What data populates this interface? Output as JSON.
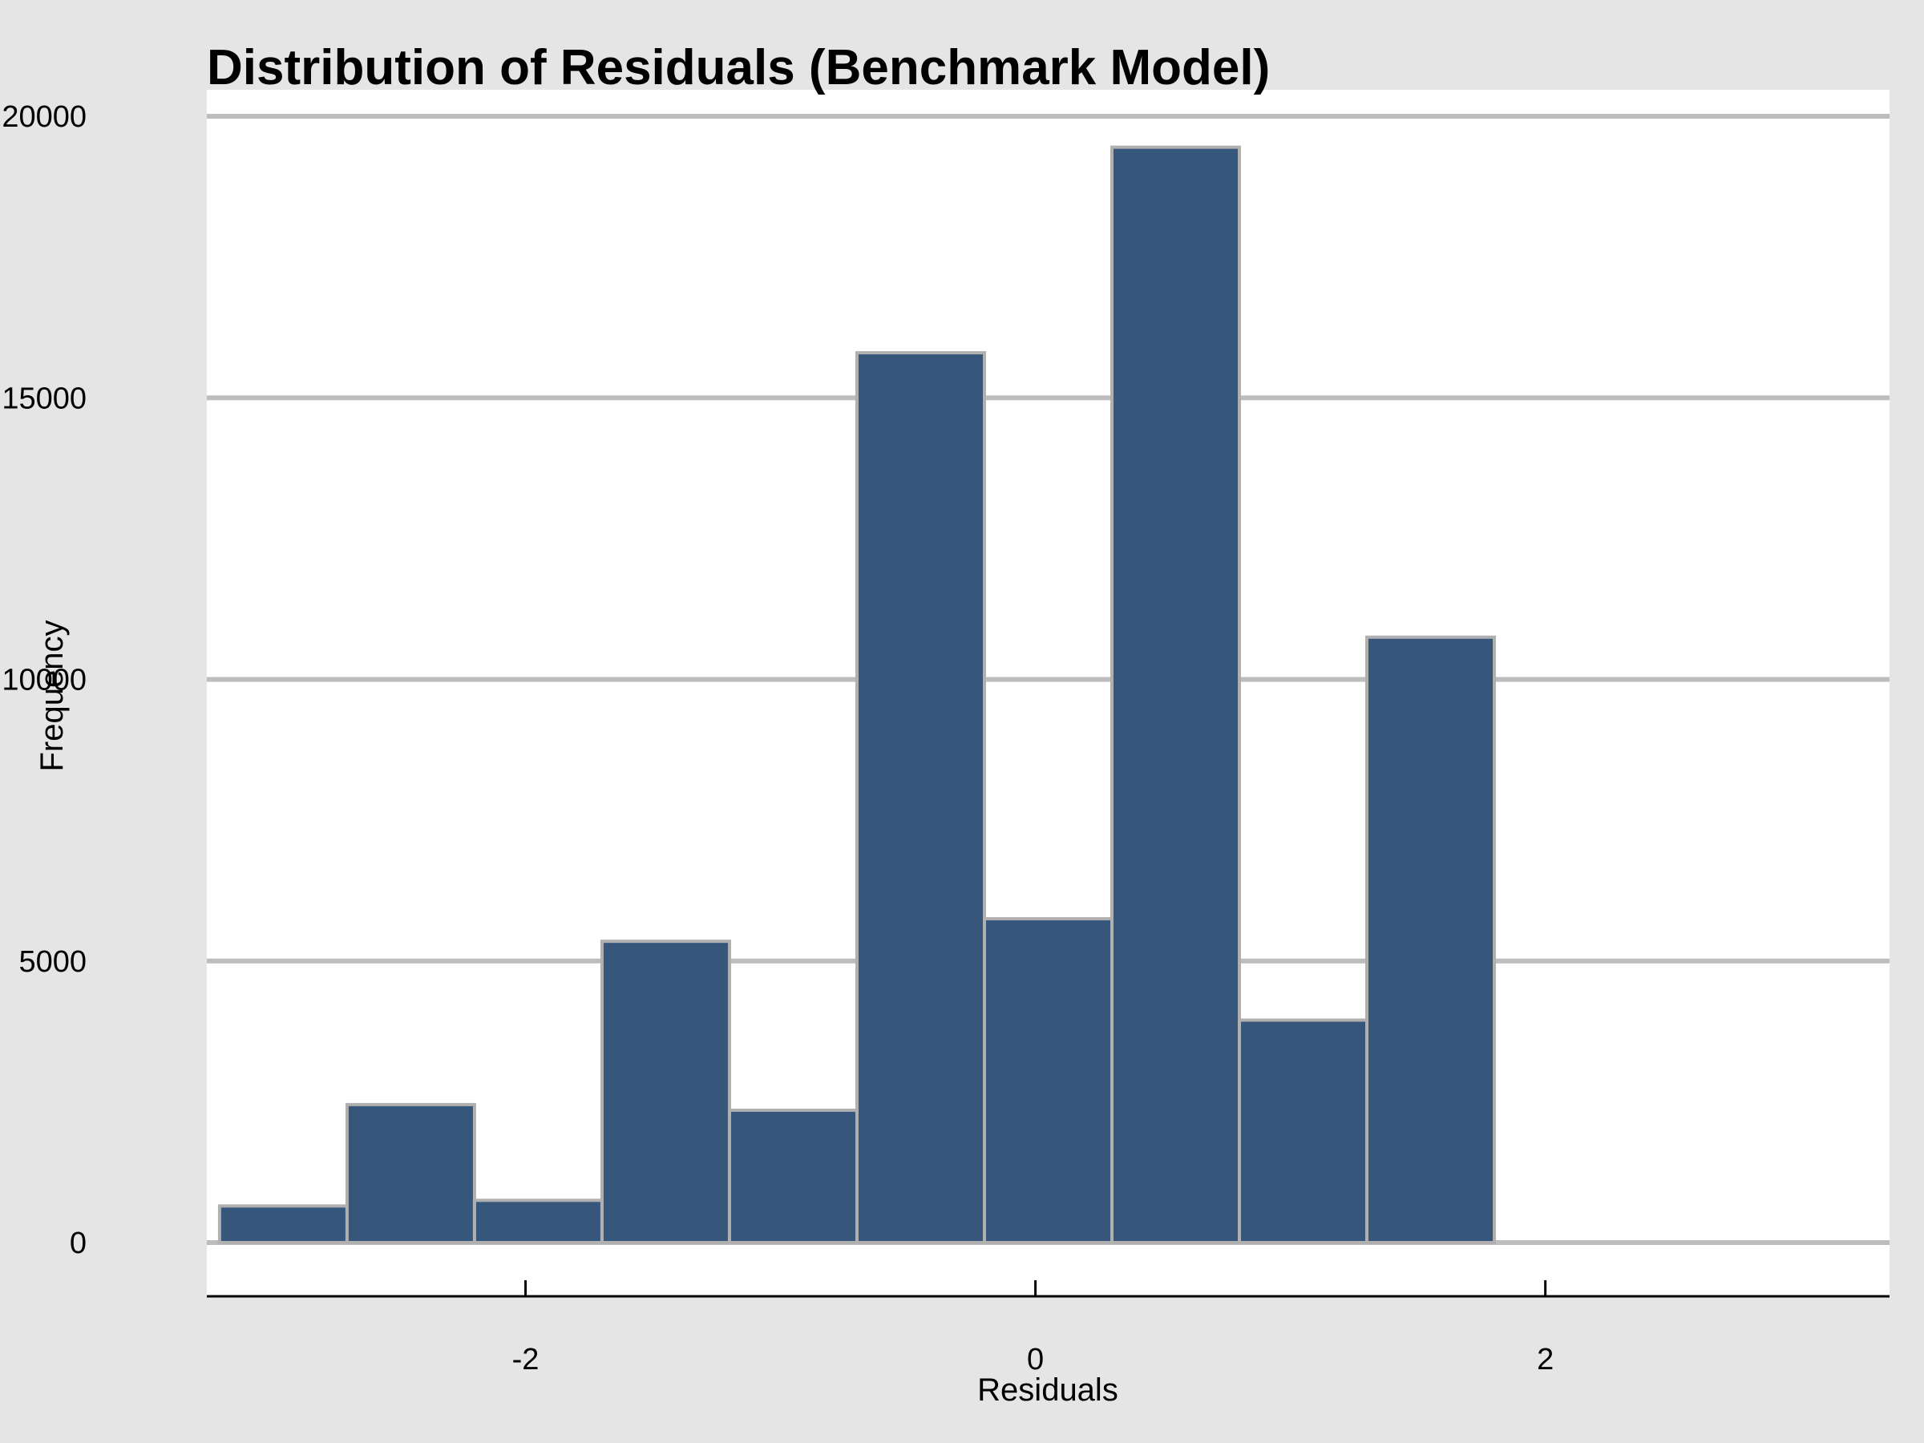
{
  "chart_data": {
    "type": "bar",
    "subtype": "histogram",
    "title": "Distribution of Residuals (Benchmark Model)",
    "xlabel": "Residuals",
    "ylabel": "Frequency",
    "xlim": [
      -3.25,
      3.35
    ],
    "ylim": [
      -950,
      20000
    ],
    "xticks": [
      -2,
      0,
      2
    ],
    "xtick_labels": [
      "-2",
      "0",
      "2"
    ],
    "yticks": [
      0,
      5000,
      10000,
      15000,
      20000
    ],
    "ytick_labels": [
      "0",
      "5000",
      "10000",
      "15000",
      "20000"
    ],
    "bins": [
      {
        "x0": -3.2,
        "x1": -2.7,
        "count": 650
      },
      {
        "x0": -2.7,
        "x1": -2.2,
        "count": 2450
      },
      {
        "x0": -2.2,
        "x1": -1.7,
        "count": 750
      },
      {
        "x0": -1.7,
        "x1": -1.2,
        "count": 5350
      },
      {
        "x0": -1.2,
        "x1": -0.7,
        "count": 2350
      },
      {
        "x0": -0.7,
        "x1": -0.2,
        "count": 15800
      },
      {
        "x0": -0.2,
        "x1": 0.3,
        "count": 5750
      },
      {
        "x0": 0.3,
        "x1": 0.8,
        "count": 19450
      },
      {
        "x0": 0.8,
        "x1": 1.3,
        "count": 3950
      },
      {
        "x0": 1.3,
        "x1": 1.8,
        "count": 10750
      }
    ],
    "grid": "horizontal",
    "legend": "none",
    "colors": {
      "bar_fill": "#36567c",
      "bar_edge": "#b0b0b0",
      "gridline": "#bdbdbd",
      "plot_background": "#ffffff",
      "figure_background": "#e5e5e5",
      "axis_line": "#000000"
    }
  }
}
